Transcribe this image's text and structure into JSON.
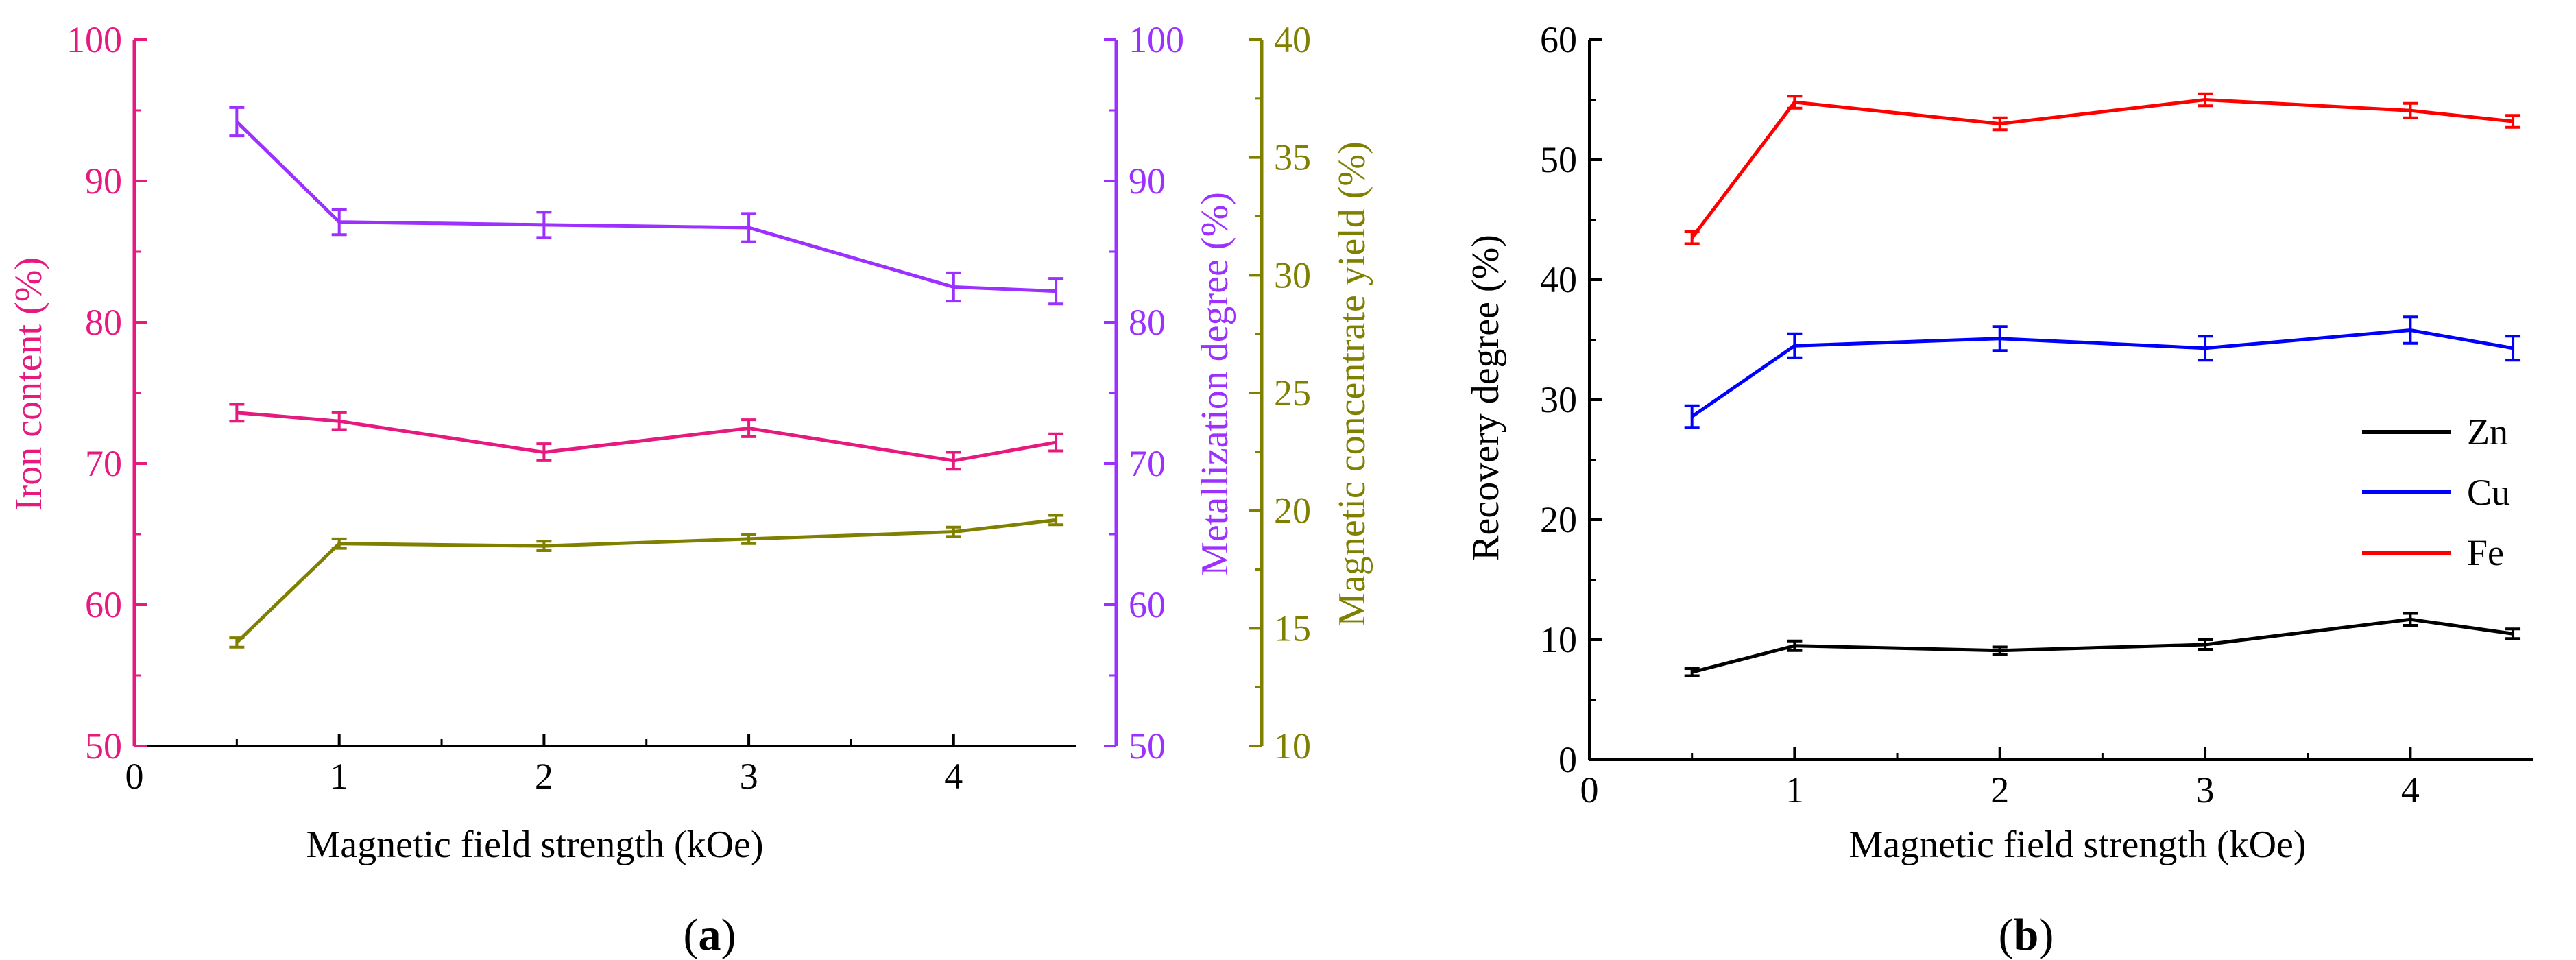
{
  "chart_data": [
    {
      "type": "line",
      "panel_label": "a",
      "xlabel": "Magnetic field strength (kOe)",
      "x": [
        0.5,
        1,
        2,
        3,
        4,
        4.5
      ],
      "xlim": [
        0,
        4.6
      ],
      "xticks": [
        "0",
        "1",
        "2",
        "3",
        "4"
      ],
      "axes": [
        {
          "id": "left",
          "label": "Iron content (%)",
          "color": "#e6197f",
          "ylim": [
            50,
            100
          ],
          "ticks": [
            "50",
            "60",
            "70",
            "80",
            "90",
            "100"
          ]
        },
        {
          "id": "right1",
          "label": "Metallization degree (%)",
          "color": "#9b30ff",
          "ylim": [
            50,
            100
          ],
          "ticks": [
            "50",
            "60",
            "70",
            "80",
            "90",
            "100"
          ]
        },
        {
          "id": "right2",
          "label": "Magnetic concentrate yield (%)",
          "color": "#7f7f00",
          "ylim": [
            10,
            40
          ],
          "ticks": [
            "10",
            "15",
            "20",
            "25",
            "30",
            "35",
            "40"
          ]
        }
      ],
      "series": [
        {
          "axis": "left",
          "color": "#e6197f",
          "values": [
            73.6,
            73.0,
            70.8,
            72.5,
            70.2,
            71.5
          ],
          "errors": [
            0.6,
            0.6,
            0.6,
            0.6,
            0.6,
            0.6
          ]
        },
        {
          "axis": "right1",
          "color": "#9b30ff",
          "values": [
            94.2,
            87.1,
            86.9,
            86.7,
            82.5,
            82.2
          ],
          "errors": [
            1.0,
            0.9,
            0.9,
            1.0,
            1.0,
            0.9
          ]
        },
        {
          "axis": "right2",
          "color": "#7f7f00",
          "values": [
            14.4,
            18.6,
            18.5,
            18.8,
            19.1,
            19.6
          ],
          "errors": [
            0.2,
            0.2,
            0.2,
            0.2,
            0.2,
            0.2
          ]
        }
      ]
    },
    {
      "type": "line",
      "panel_label": "b",
      "xlabel": "Magnetic field strength (kOe)",
      "ylabel": "Recovery degree (%)",
      "x": [
        0.5,
        1,
        2,
        3,
        4,
        4.5
      ],
      "xlim": [
        0,
        4.6
      ],
      "ylim": [
        0,
        60
      ],
      "xticks": [
        "0",
        "1",
        "2",
        "3",
        "4"
      ],
      "yticks": [
        "0",
        "10",
        "20",
        "30",
        "40",
        "50",
        "60"
      ],
      "legend_position": "right",
      "series": [
        {
          "name": "Zn",
          "color": "#000000",
          "values": [
            7.3,
            9.5,
            9.1,
            9.6,
            11.7,
            10.5
          ],
          "errors": [
            0.3,
            0.4,
            0.3,
            0.4,
            0.5,
            0.4
          ]
        },
        {
          "name": "Cu",
          "color": "#0000ff",
          "values": [
            28.6,
            34.5,
            35.1,
            34.3,
            35.8,
            34.3
          ],
          "errors": [
            0.9,
            1.0,
            1.0,
            1.0,
            1.1,
            1.0
          ]
        },
        {
          "name": "Fe",
          "color": "#ff0000",
          "values": [
            43.5,
            54.8,
            53.0,
            55.0,
            54.1,
            53.2
          ],
          "errors": [
            0.5,
            0.5,
            0.5,
            0.5,
            0.6,
            0.5
          ]
        }
      ]
    }
  ]
}
